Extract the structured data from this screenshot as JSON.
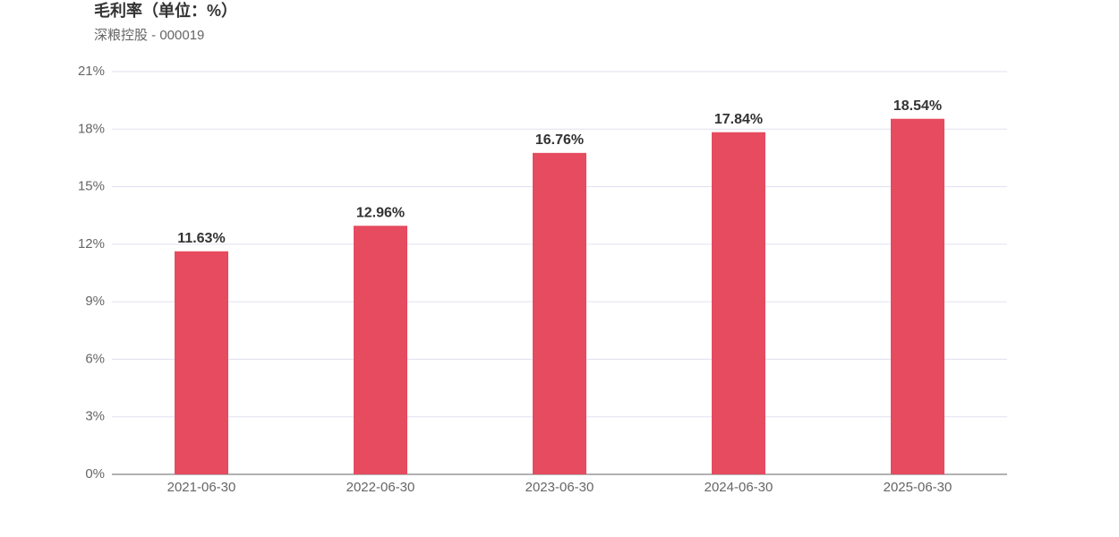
{
  "chart_data": {
    "type": "bar",
    "title": "毛利率（单位：%）",
    "subtitle": "深粮控股 - 000019",
    "categories": [
      "2021-06-30",
      "2022-06-30",
      "2023-06-30",
      "2024-06-30",
      "2025-06-30"
    ],
    "values": [
      11.63,
      12.96,
      16.76,
      17.84,
      18.54
    ],
    "value_labels": [
      "11.63%",
      "12.96%",
      "16.76%",
      "17.84%",
      "18.54%"
    ],
    "color": "#e64b5f",
    "ylim": [
      0,
      21
    ],
    "yticks": [
      {
        "value": 0,
        "label": "0%"
      },
      {
        "value": 3,
        "label": "3%"
      },
      {
        "value": 6,
        "label": "6%"
      },
      {
        "value": 9,
        "label": "9%"
      },
      {
        "value": 12,
        "label": "12%"
      },
      {
        "value": 15,
        "label": "15%"
      },
      {
        "value": 18,
        "label": "18%"
      },
      {
        "value": 21,
        "label": "21%"
      }
    ],
    "grid": true
  }
}
